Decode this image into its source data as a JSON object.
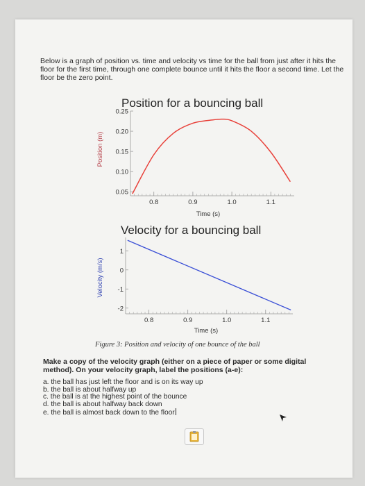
{
  "intro_text": "Below is a graph of position vs. time and velocity vs time for the ball from just after it hits the floor for the first time, through one complete bounce until it hits the floor a second time. Let the floor be the zero point.",
  "chart_data": [
    {
      "type": "line",
      "title": "Position for a bouncing ball",
      "xlabel": "Time (s)",
      "ylabel": "Position (m)",
      "xticks": [
        "0.8",
        "0.9",
        "1.0",
        "1.1"
      ],
      "yticks": [
        "0.25",
        "0.20",
        "0.15",
        "0.10",
        "0.05"
      ],
      "xlim": [
        0.74,
        1.16
      ],
      "ylim": [
        0.04,
        0.25
      ],
      "grid": false,
      "series": [
        {
          "color": "#e8413a",
          "x": [
            0.745,
            0.8,
            0.85,
            0.9,
            0.95,
            0.975,
            1.0,
            1.05,
            1.1,
            1.15
          ],
          "y": [
            0.045,
            0.142,
            0.195,
            0.22,
            0.228,
            0.23,
            0.226,
            0.2,
            0.148,
            0.075
          ]
        }
      ]
    },
    {
      "type": "line",
      "title": "Velocity for a bouncing ball",
      "xlabel": "Time (s)",
      "ylabel": "Velocity (m/s)",
      "xticks": [
        "0.8",
        "0.9",
        "1.0",
        "1.1"
      ],
      "yticks": [
        "1",
        "0",
        "-1",
        "-2"
      ],
      "xlim": [
        0.74,
        1.17
      ],
      "ylim": [
        -2.3,
        1.7
      ],
      "grid": false,
      "series": [
        {
          "color": "#3a4fd6",
          "x": [
            0.745,
            1.165
          ],
          "y": [
            1.55,
            -2.1
          ]
        }
      ]
    }
  ],
  "caption": "Figure 3: Position and velocity of one bounce of the ball",
  "task_text": "Make a copy of the velocity graph (either on a piece of paper or some digital method). On your velocity graph, label the positions (a-e):",
  "labels": [
    "a. the ball has just left the floor and is on its way up",
    "b. the ball is about halfway up",
    "c. the ball is at the highest point of the bounce",
    "d. the ball is about halfway back down",
    "e. the ball is almost back down to the floor"
  ]
}
